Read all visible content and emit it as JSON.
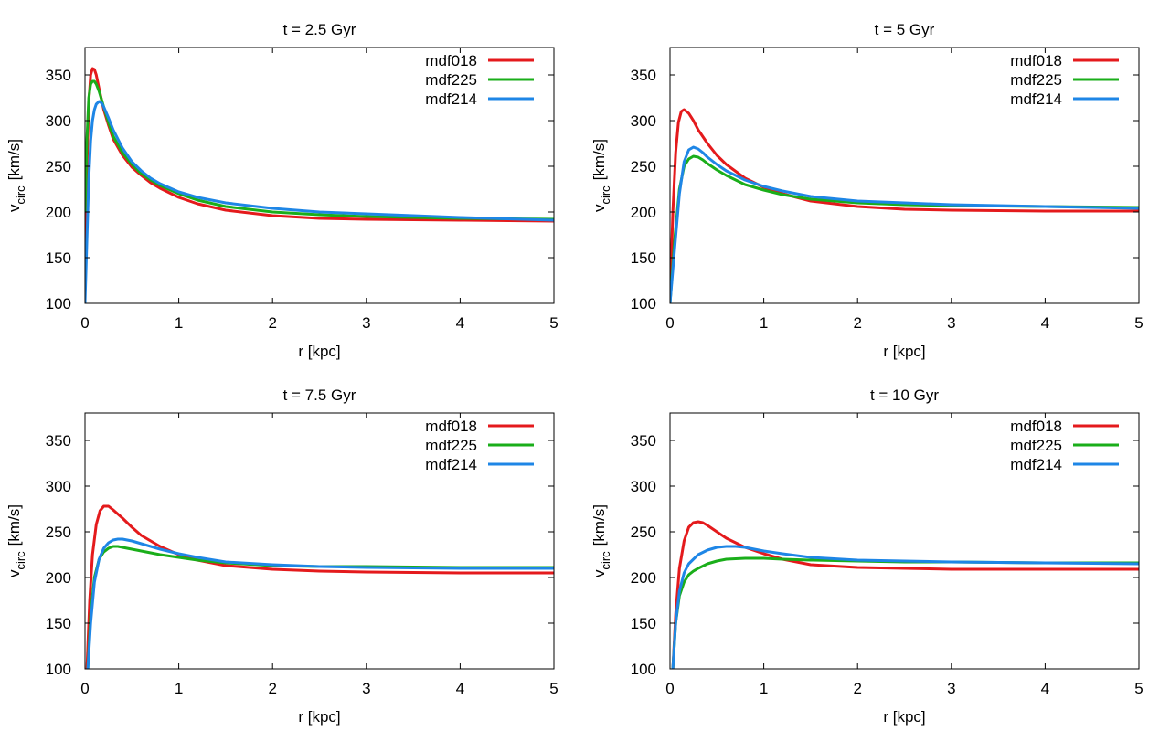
{
  "chart_data": [
    {
      "type": "line",
      "title": "t = 2.5 Gyr",
      "xlabel": "r [kpc]",
      "ylabel_main": "v",
      "ylabel_sub": "circ",
      "ylabel_unit": "[km/s]",
      "xlim": [
        0,
        5
      ],
      "ylim": [
        100,
        380
      ],
      "xticks": [
        0,
        1,
        2,
        3,
        4,
        5
      ],
      "yticks": [
        100,
        150,
        200,
        250,
        300,
        350
      ],
      "legend_position": "top-right",
      "series": [
        {
          "name": "mdf018",
          "color": "#e41a1c",
          "x": [
            0,
            0.02,
            0.04,
            0.06,
            0.08,
            0.1,
            0.12,
            0.15,
            0.2,
            0.25,
            0.3,
            0.4,
            0.5,
            0.6,
            0.7,
            0.8,
            1.0,
            1.2,
            1.5,
            2.0,
            2.5,
            3.0,
            4.0,
            5.0
          ],
          "y": [
            150,
            250,
            320,
            350,
            357,
            356,
            350,
            335,
            312,
            295,
            280,
            262,
            249,
            240,
            232,
            226,
            216,
            209,
            202,
            196,
            193,
            192,
            191,
            190
          ]
        },
        {
          "name": "mdf225",
          "color": "#1aae1a",
          "x": [
            0,
            0.02,
            0.04,
            0.06,
            0.08,
            0.1,
            0.12,
            0.15,
            0.2,
            0.25,
            0.3,
            0.4,
            0.5,
            0.6,
            0.7,
            0.8,
            1.0,
            1.2,
            1.5,
            2.0,
            2.5,
            3.0,
            4.0,
            5.0
          ],
          "y": [
            200,
            280,
            325,
            340,
            343,
            343,
            340,
            332,
            315,
            298,
            283,
            265,
            252,
            242,
            235,
            229,
            220,
            213,
            206,
            200,
            197,
            195,
            193,
            192
          ]
        },
        {
          "name": "mdf214",
          "color": "#1e86e6",
          "x": [
            0,
            0.02,
            0.04,
            0.06,
            0.08,
            0.1,
            0.12,
            0.15,
            0.18,
            0.2,
            0.25,
            0.3,
            0.4,
            0.5,
            0.6,
            0.7,
            0.8,
            1.0,
            1.2,
            1.5,
            2.0,
            2.5,
            3.0,
            4.0,
            5.0
          ],
          "y": [
            100,
            170,
            235,
            278,
            300,
            312,
            318,
            321,
            319,
            315,
            303,
            290,
            270,
            255,
            245,
            237,
            231,
            222,
            216,
            210,
            204,
            200,
            198,
            194,
            191
          ]
        }
      ]
    },
    {
      "type": "line",
      "title": "t = 5 Gyr",
      "xlabel": "r [kpc]",
      "ylabel_main": "v",
      "ylabel_sub": "circ",
      "ylabel_unit": "[km/s]",
      "xlim": [
        0,
        5
      ],
      "ylim": [
        100,
        380
      ],
      "xticks": [
        0,
        1,
        2,
        3,
        4,
        5
      ],
      "yticks": [
        100,
        150,
        200,
        250,
        300,
        350
      ],
      "legend_position": "top-right",
      "series": [
        {
          "name": "mdf018",
          "color": "#e41a1c",
          "x": [
            0,
            0.03,
            0.06,
            0.09,
            0.12,
            0.15,
            0.2,
            0.25,
            0.3,
            0.4,
            0.5,
            0.6,
            0.8,
            1.0,
            1.2,
            1.5,
            2.0,
            2.5,
            3.0,
            4.0,
            5.0
          ],
          "y": [
            100,
            200,
            265,
            298,
            310,
            312,
            308,
            300,
            290,
            275,
            262,
            252,
            237,
            227,
            220,
            212,
            206,
            203,
            202,
            201,
            201
          ]
        },
        {
          "name": "mdf225",
          "color": "#1aae1a",
          "x": [
            0,
            0.05,
            0.1,
            0.15,
            0.2,
            0.25,
            0.3,
            0.35,
            0.4,
            0.5,
            0.6,
            0.8,
            1.0,
            1.2,
            1.5,
            2.0,
            2.5,
            3.0,
            4.0,
            5.0
          ],
          "y": [
            100,
            170,
            225,
            250,
            258,
            261,
            260,
            257,
            253,
            246,
            240,
            230,
            224,
            219,
            214,
            210,
            208,
            207,
            206,
            205
          ]
        },
        {
          "name": "mdf214",
          "color": "#1e86e6",
          "x": [
            0,
            0.05,
            0.1,
            0.15,
            0.2,
            0.25,
            0.3,
            0.35,
            0.4,
            0.5,
            0.6,
            0.8,
            1.0,
            1.2,
            1.5,
            2.0,
            2.5,
            3.0,
            4.0,
            5.0
          ],
          "y": [
            100,
            160,
            220,
            255,
            268,
            271,
            269,
            265,
            260,
            252,
            245,
            235,
            228,
            223,
            217,
            212,
            210,
            208,
            206,
            204
          ]
        }
      ]
    },
    {
      "type": "line",
      "title": "t = 7.5 Gyr",
      "xlabel": "r [kpc]",
      "ylabel_main": "v",
      "ylabel_sub": "circ",
      "ylabel_unit": "[km/s]",
      "xlim": [
        0,
        5
      ],
      "ylim": [
        100,
        380
      ],
      "xticks": [
        0,
        1,
        2,
        3,
        4,
        5
      ],
      "yticks": [
        100,
        150,
        200,
        250,
        300,
        350
      ],
      "legend_position": "top-right",
      "series": [
        {
          "name": "mdf018",
          "color": "#e41a1c",
          "x": [
            0.02,
            0.05,
            0.08,
            0.12,
            0.16,
            0.2,
            0.25,
            0.3,
            0.4,
            0.5,
            0.6,
            0.8,
            1.0,
            1.2,
            1.5,
            2.0,
            2.5,
            3.0,
            4.0,
            5.0
          ],
          "y": [
            100,
            175,
            225,
            258,
            273,
            278,
            278,
            274,
            265,
            255,
            246,
            234,
            225,
            219,
            213,
            209,
            207,
            206,
            205,
            205
          ]
        },
        {
          "name": "mdf225",
          "color": "#1aae1a",
          "x": [
            0.03,
            0.06,
            0.1,
            0.15,
            0.2,
            0.25,
            0.3,
            0.35,
            0.4,
            0.5,
            0.6,
            0.8,
            1.0,
            1.2,
            1.5,
            2.0,
            2.5,
            3.0,
            4.0,
            5.0
          ],
          "y": [
            100,
            160,
            200,
            220,
            228,
            232,
            234,
            234,
            233,
            231,
            229,
            225,
            222,
            219,
            216,
            213,
            212,
            212,
            211,
            211
          ]
        },
        {
          "name": "mdf214",
          "color": "#1e86e6",
          "x": [
            0.03,
            0.06,
            0.1,
            0.15,
            0.2,
            0.25,
            0.3,
            0.35,
            0.4,
            0.45,
            0.5,
            0.6,
            0.8,
            1.0,
            1.2,
            1.5,
            2.0,
            2.5,
            3.0,
            4.0,
            5.0
          ],
          "y": [
            100,
            150,
            195,
            220,
            232,
            238,
            241,
            242,
            242,
            241,
            240,
            237,
            231,
            226,
            222,
            217,
            214,
            212,
            211,
            210,
            210
          ]
        }
      ]
    },
    {
      "type": "line",
      "title": "t = 10 Gyr",
      "xlabel": "r [kpc]",
      "ylabel_main": "v",
      "ylabel_sub": "circ",
      "ylabel_unit": "[km/s]",
      "xlim": [
        0,
        5
      ],
      "ylim": [
        100,
        380
      ],
      "xticks": [
        0,
        1,
        2,
        3,
        4,
        5
      ],
      "yticks": [
        100,
        150,
        200,
        250,
        300,
        350
      ],
      "legend_position": "top-right",
      "series": [
        {
          "name": "mdf018",
          "color": "#e41a1c",
          "x": [
            0.03,
            0.06,
            0.1,
            0.15,
            0.2,
            0.25,
            0.3,
            0.35,
            0.4,
            0.5,
            0.6,
            0.8,
            1.0,
            1.2,
            1.5,
            2.0,
            2.5,
            3.0,
            4.0,
            5.0
          ],
          "y": [
            100,
            160,
            210,
            240,
            255,
            260,
            261,
            260,
            257,
            250,
            243,
            233,
            226,
            220,
            214,
            211,
            210,
            209,
            209,
            209
          ]
        },
        {
          "name": "mdf225",
          "color": "#1aae1a",
          "x": [
            0.03,
            0.06,
            0.1,
            0.15,
            0.2,
            0.25,
            0.3,
            0.4,
            0.5,
            0.6,
            0.8,
            1.0,
            1.2,
            1.5,
            2.0,
            2.5,
            3.0,
            4.0,
            5.0
          ],
          "y": [
            100,
            150,
            180,
            195,
            203,
            207,
            210,
            215,
            218,
            220,
            221,
            221,
            220,
            219,
            218,
            217,
            217,
            216,
            216
          ]
        },
        {
          "name": "mdf214",
          "color": "#1e86e6",
          "x": [
            0.03,
            0.06,
            0.1,
            0.15,
            0.2,
            0.3,
            0.4,
            0.5,
            0.6,
            0.7,
            0.8,
            1.0,
            1.2,
            1.5,
            2.0,
            2.5,
            3.0,
            4.0,
            5.0
          ],
          "y": [
            100,
            150,
            185,
            205,
            215,
            225,
            230,
            233,
            234,
            234,
            233,
            229,
            226,
            222,
            219,
            218,
            217,
            216,
            215
          ]
        }
      ]
    }
  ]
}
